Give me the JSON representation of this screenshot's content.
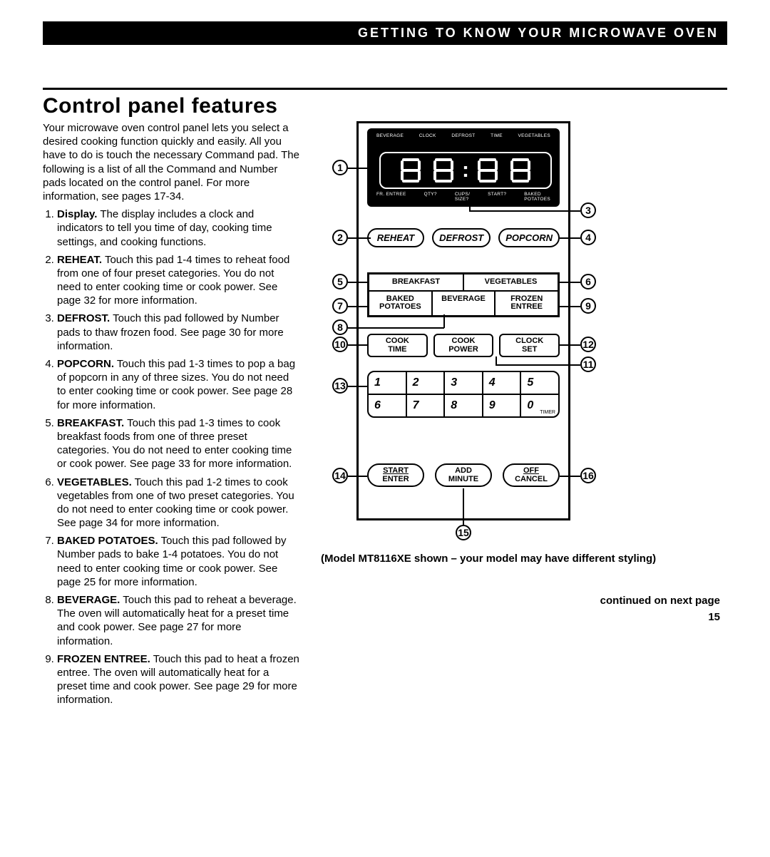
{
  "header_bar": "GETTING TO KNOW YOUR MICROWAVE OVEN",
  "title": "Control panel features",
  "intro": "Your microwave oven control panel lets you select a desired cooking function quickly and easily. All you have to do is touch the necessary Command pad. The following is a list of all the Command and Number pads located on the control panel. For more information, see pages 17-34.",
  "items": [
    {
      "lead": "Display.",
      "body": " The display includes a clock and indicators to tell you time of day, cooking time settings, and cooking functions."
    },
    {
      "lead": "REHEAT.",
      "body": " Touch this pad 1-4 times to reheat food from one of four preset categories. You do not need to enter cooking time or cook power. See page 32 for more information."
    },
    {
      "lead": "DEFROST.",
      "body": " Touch this pad followed by Number pads to thaw frozen food. See page 30 for more information."
    },
    {
      "lead": "POPCORN.",
      "body": " Touch this pad 1-3 times to pop a bag of popcorn in any of three sizes. You do not need to enter cooking time or cook power. See page 28 for more information."
    },
    {
      "lead": "BREAKFAST.",
      "body": " Touch this pad 1-3 times to cook breakfast foods from one of three preset categories. You do not need to enter cooking time or cook power. See page 33 for more information."
    },
    {
      "lead": "VEGETABLES.",
      "body": " Touch this pad 1-2 times to cook vegetables from one of two preset categories. You do not need to enter cooking time or cook power. See page 34 for more information."
    },
    {
      "lead": "BAKED POTATOES.",
      "body": " Touch this pad followed by Number pads to bake 1-4 potatoes. You do not need to enter cooking time or cook power. See page 25 for more information."
    },
    {
      "lead": "BEVERAGE.",
      "body": " Touch this pad to reheat a beverage. The oven will automatically heat for a preset time and cook power. See page 27 for more information."
    },
    {
      "lead": "FROZEN ENTREE.",
      "body": " Touch this pad to heat a frozen entree. The oven will automatically heat for a preset time and cook power. See page 29 for more information."
    }
  ],
  "caption": "(Model MT8116XE shown – your model may have different styling)",
  "continued": "continued on next page",
  "pagenum": "15",
  "panel": {
    "display_top": [
      "BEVERAGE",
      "CLOCK",
      "DEFROST",
      "TIME",
      "VEGETABLES"
    ],
    "display_bot": [
      "FR. ENTREE",
      "QTY?",
      "CUPS/\nSIZE?",
      "START?",
      "BAKED\nPOTATOES"
    ],
    "ovals": [
      "REHEAT",
      "DEFROST",
      "POPCORN"
    ],
    "grid": [
      [
        "BREAKFAST",
        "VEGETABLES"
      ],
      [
        "BAKED\nPOTATOES",
        "BEVERAGE",
        "FROZEN\nENTREE"
      ]
    ],
    "cook_row": [
      "COOK\nTIME",
      "COOK\nPOWER",
      "CLOCK\nSET"
    ],
    "numpad": [
      [
        "1",
        "2",
        "3",
        "4",
        "5"
      ],
      [
        "6",
        "7",
        "8",
        "9",
        "0"
      ]
    ],
    "timer": "TIMER",
    "bottom": [
      {
        "top": "START",
        "bot": "ENTER"
      },
      {
        "top": "ADD",
        "bot": "MINUTE"
      },
      {
        "top": "OFF",
        "bot": "CANCEL"
      }
    ],
    "callouts": {
      "1": "1",
      "2": "2",
      "3": "3",
      "4": "4",
      "5": "5",
      "6": "6",
      "7": "7",
      "8": "8",
      "9": "9",
      "10": "10",
      "11": "11",
      "12": "12",
      "13": "13",
      "14": "14",
      "15": "15",
      "16": "16"
    }
  }
}
